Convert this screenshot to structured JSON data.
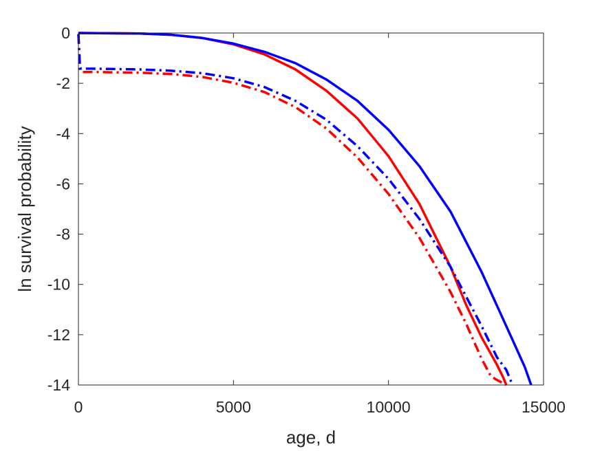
{
  "chart_data": {
    "type": "line",
    "title": "",
    "xlabel": "age, d",
    "ylabel": "ln survival probability",
    "xlim": [
      0,
      15000
    ],
    "ylim": [
      -14,
      0
    ],
    "xticks": [
      0,
      5000,
      10000,
      15000
    ],
    "xtick_labels": [
      "0",
      "5000",
      "10000",
      "15000"
    ],
    "yticks": [
      0,
      -2,
      -4,
      -6,
      -8,
      -10,
      -12,
      -14
    ],
    "ytick_labels": [
      "0",
      "-2",
      "-4",
      "-6",
      "-8",
      "-10",
      "-12",
      "-14"
    ],
    "grid": false,
    "legend": "none",
    "series": [
      {
        "color": "#ff0000",
        "style": "solid",
        "x": [
          0,
          1000,
          2000,
          3000,
          4000,
          5000,
          6000,
          7000,
          8000,
          9000,
          10000,
          11000,
          12000,
          12500,
          13000,
          13500,
          13700,
          13800
        ],
        "y": [
          0,
          -0.01,
          -0.02,
          -0.07,
          -0.2,
          -0.45,
          -0.85,
          -1.45,
          -2.3,
          -3.4,
          -4.9,
          -6.8,
          -9.3,
          -10.8,
          -12.1,
          -13.2,
          -13.7,
          -14
        ]
      },
      {
        "color": "#0000ff",
        "style": "solid",
        "x": [
          0,
          1000,
          2000,
          3000,
          4000,
          5000,
          6000,
          7000,
          8000,
          9000,
          10000,
          11000,
          12000,
          13000,
          14000,
          14400,
          14600
        ],
        "y": [
          0,
          -0.01,
          -0.02,
          -0.07,
          -0.2,
          -0.42,
          -0.75,
          -1.2,
          -1.85,
          -2.7,
          -3.85,
          -5.3,
          -7.1,
          -9.5,
          -12.2,
          -13.3,
          -14
        ]
      },
      {
        "color": "#ff0000",
        "style": "dashdot",
        "x": [
          0,
          50,
          100,
          500,
          1000,
          2000,
          3000,
          4000,
          5000,
          6000,
          7000,
          8000,
          9000,
          10000,
          11000,
          12000,
          12500,
          13000,
          13300,
          13500,
          13800
        ],
        "y": [
          -0.05,
          -1.5,
          -1.55,
          -1.55,
          -1.56,
          -1.58,
          -1.63,
          -1.75,
          -1.98,
          -2.35,
          -2.95,
          -3.8,
          -4.95,
          -6.4,
          -8.15,
          -10.3,
          -11.55,
          -12.95,
          -13.65,
          -13.8,
          -14
        ]
      },
      {
        "color": "#0000ff",
        "style": "dashdot",
        "x": [
          0,
          50,
          100,
          500,
          1000,
          2000,
          3000,
          4000,
          5000,
          6000,
          7000,
          8000,
          9000,
          10000,
          11000,
          12000,
          13000,
          13500,
          13800,
          14000
        ],
        "y": [
          -0.05,
          -1.4,
          -1.42,
          -1.42,
          -1.43,
          -1.45,
          -1.5,
          -1.6,
          -1.8,
          -2.15,
          -2.7,
          -3.45,
          -4.5,
          -5.8,
          -7.4,
          -9.3,
          -11.65,
          -12.9,
          -13.4,
          -14
        ]
      }
    ]
  }
}
